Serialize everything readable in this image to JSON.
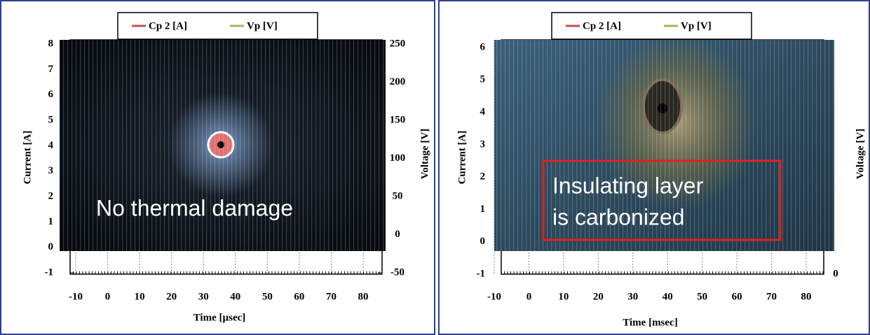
{
  "chart_data": [
    {
      "type": "line",
      "series": [
        {
          "name": "Cp 2 [A]",
          "color": "#c0504d"
        },
        {
          "name": "Vp [V]",
          "color": "#9bbb59"
        }
      ],
      "y_label": "Current [A]",
      "y2_label": "Voltage [V]",
      "x_label": "Time [µsec]",
      "ylim": [
        -1,
        8
      ],
      "yticks": [
        -1,
        0,
        1,
        2,
        3,
        4,
        5,
        6,
        7,
        8
      ],
      "y2lim": [
        -50,
        250
      ],
      "y2ticks": [
        -50,
        0,
        50,
        100,
        150,
        200,
        250
      ],
      "xlim": [
        -10,
        80
      ],
      "xticks": [
        -10,
        0,
        10,
        20,
        30,
        40,
        50,
        60,
        70,
        80
      ],
      "annotation": [
        "No thermal damage"
      ]
    },
    {
      "type": "line",
      "series": [
        {
          "name": "Cp 2 [A]",
          "color": "#c0504d"
        },
        {
          "name": "Vp [V]",
          "color": "#9bbb59"
        }
      ],
      "y_label": "Current [A]",
      "y2_label": "Voltage [V]",
      "x_label": "Time [msec]",
      "ylim": [
        -1,
        6
      ],
      "yticks": [
        -1,
        0,
        1,
        2,
        3,
        4,
        5,
        6
      ],
      "y2ticks": [
        0
      ],
      "xlim": [
        -10,
        80
      ],
      "xticks": [
        -10,
        0,
        10,
        20,
        30,
        40,
        50,
        60,
        70,
        80
      ],
      "annotation": [
        "Insulating layer",
        "is carbonized"
      ]
    }
  ]
}
